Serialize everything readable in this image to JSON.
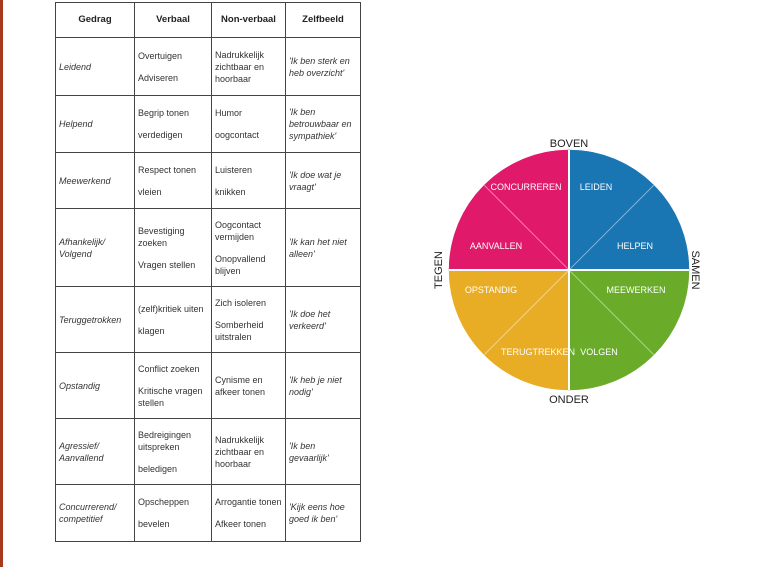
{
  "table": {
    "headers": [
      "Gedrag",
      "Verbaal",
      "Non-verbaal",
      "Zelfbeeld"
    ],
    "rows": [
      {
        "gedrag": [
          "Leidend"
        ],
        "verbaal": [
          "Overtuigen",
          "Adviseren"
        ],
        "nonverbaal": [
          "Nadrukkelijk zichtbaar en hoorbaar"
        ],
        "zelfbeeld": [
          "'Ik ben sterk en heb overzicht'"
        ]
      },
      {
        "gedrag": [
          "Helpend"
        ],
        "verbaal": [
          "Begrip tonen",
          "verdedigen"
        ],
        "nonverbaal": [
          "Humor",
          "oogcontact"
        ],
        "zelfbeeld": [
          "'Ik ben betrouwbaar en sympathiek'"
        ]
      },
      {
        "gedrag": [
          "Meewerkend"
        ],
        "verbaal": [
          "Respect tonen",
          "vleien"
        ],
        "nonverbaal": [
          "Luisteren",
          "knikken"
        ],
        "zelfbeeld": [
          "'Ik doe wat je vraagt'"
        ]
      },
      {
        "gedrag": [
          "Afhankelijk/ Volgend"
        ],
        "verbaal": [
          "Bevestiging zoeken",
          "Vragen stellen"
        ],
        "nonverbaal": [
          "Oogcontact vermijden",
          "Onopvallend blijven"
        ],
        "zelfbeeld": [
          "'Ik kan het niet alleen'"
        ]
      },
      {
        "gedrag": [
          "Teruggetrokken"
        ],
        "verbaal": [
          "(zelf)kritiek uiten",
          "klagen"
        ],
        "nonverbaal": [
          "Zich isoleren",
          "Somberheid uitstralen"
        ],
        "zelfbeeld": [
          "'Ik doe het verkeerd'"
        ]
      },
      {
        "gedrag": [
          "Opstandig"
        ],
        "verbaal": [
          "Conflict zoeken",
          "Kritische vragen stellen"
        ],
        "nonverbaal": [
          "Cynisme en afkeer tonen"
        ],
        "zelfbeeld": [
          "'Ik heb je niet nodig'"
        ]
      },
      {
        "gedrag": [
          "Agressief/ Aanvallend"
        ],
        "verbaal": [
          "Bedreigingen uitspreken",
          "beledigen"
        ],
        "nonverbaal": [
          "Nadrukkelijk zichtbaar en hoorbaar"
        ],
        "zelfbeeld": [
          "'Ik ben gevaarlijk'"
        ]
      },
      {
        "gedrag": [
          "Concurrerend/ competitief"
        ],
        "verbaal": [
          "Opscheppen",
          "bevelen"
        ],
        "nonverbaal": [
          "Arrogantie tonen",
          "Afkeer tonen"
        ],
        "zelfbeeld": [
          "'Kijk eens hoe goed ik ben'"
        ]
      }
    ]
  },
  "wheel": {
    "axis_labels": {
      "top": "BOVEN",
      "bottom": "ONDER",
      "left": "TEGEN",
      "right": "SAMEN"
    },
    "segments": [
      {
        "label": "LEIDEN",
        "color": "#1a75b3"
      },
      {
        "label": "HELPEN",
        "color": "#1a75b3"
      },
      {
        "label": "MEEWERKEN",
        "color": "#6aac2a"
      },
      {
        "label": "VOLGEN",
        "color": "#6aac2a"
      },
      {
        "label": "TERUGTREKKEN",
        "color": "#e9ad25"
      },
      {
        "label": "OPSTANDIG",
        "color": "#e9ad25"
      },
      {
        "label": "AANVALLEN",
        "color": "#e0196a"
      },
      {
        "label": "CONCURREREN",
        "color": "#e0196a"
      }
    ]
  }
}
